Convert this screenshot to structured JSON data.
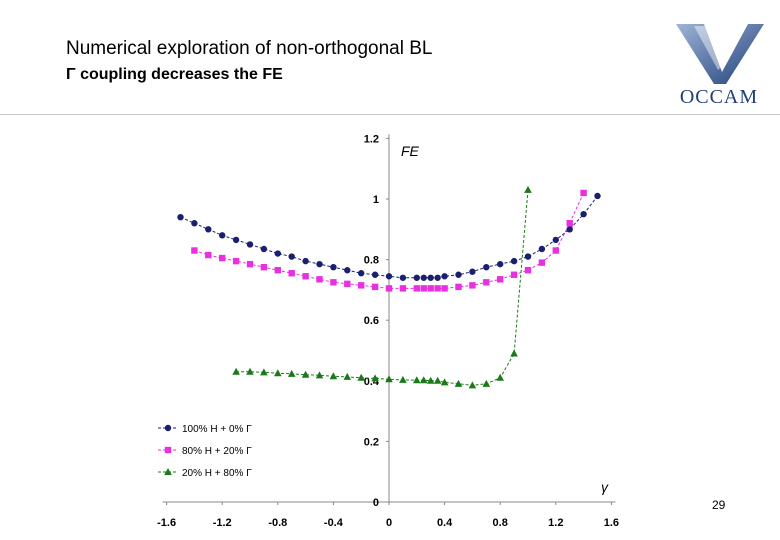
{
  "header": {
    "title": "Numerical exploration of non-orthogonal BL",
    "subtitle": "Γ coupling decreases the FE",
    "logo_text": "OCCAM",
    "page_number": "29"
  },
  "colors": {
    "series1": "#1a1f6e",
    "series2": "#e830e0",
    "series3": "#1a7a1a",
    "logo": "#1f3f7a"
  },
  "chart_data": {
    "type": "line",
    "title": "",
    "xlabel": "γ",
    "ylabel": "FE",
    "xlim": [
      -1.6,
      1.6
    ],
    "ylim": [
      0,
      1.2
    ],
    "xticks": [
      "-1.6",
      "-1.2",
      "-0.8",
      "-0.4",
      "0",
      "0.4",
      "0.8",
      "1.2",
      "1.6"
    ],
    "yticks": [
      "0",
      "0.2",
      "0.4",
      "0.6",
      "0.8",
      "1",
      "1.2"
    ],
    "grid": false,
    "legend_position": "bottom-left",
    "series": [
      {
        "name": "100% H + 0% Γ",
        "marker": "circle",
        "x": [
          -1.5,
          -1.4,
          -1.3,
          -1.2,
          -1.1,
          -1.0,
          -0.9,
          -0.8,
          -0.7,
          -0.6,
          -0.5,
          -0.4,
          -0.3,
          -0.2,
          -0.1,
          0.0,
          0.1,
          0.2,
          0.25,
          0.3,
          0.35,
          0.4,
          0.5,
          0.6,
          0.7,
          0.8,
          0.9,
          1.0,
          1.1,
          1.2,
          1.3,
          1.4,
          1.5
        ],
        "y": [
          0.94,
          0.92,
          0.9,
          0.88,
          0.865,
          0.85,
          0.835,
          0.82,
          0.81,
          0.795,
          0.785,
          0.775,
          0.765,
          0.755,
          0.75,
          0.745,
          0.74,
          0.74,
          0.74,
          0.74,
          0.74,
          0.745,
          0.75,
          0.76,
          0.775,
          0.785,
          0.795,
          0.81,
          0.835,
          0.865,
          0.9,
          0.95,
          1.01
        ]
      },
      {
        "name": "80% H + 20% Γ",
        "marker": "square",
        "x": [
          -1.4,
          -1.3,
          -1.2,
          -1.1,
          -1.0,
          -0.9,
          -0.8,
          -0.7,
          -0.6,
          -0.5,
          -0.4,
          -0.3,
          -0.2,
          -0.1,
          0.0,
          0.1,
          0.2,
          0.25,
          0.3,
          0.35,
          0.4,
          0.5,
          0.6,
          0.7,
          0.8,
          0.9,
          1.0,
          1.1,
          1.2,
          1.3,
          1.4
        ],
        "y": [
          0.83,
          0.815,
          0.805,
          0.795,
          0.785,
          0.775,
          0.765,
          0.755,
          0.745,
          0.735,
          0.725,
          0.72,
          0.715,
          0.71,
          0.705,
          0.705,
          0.705,
          0.705,
          0.705,
          0.705,
          0.705,
          0.71,
          0.715,
          0.725,
          0.735,
          0.75,
          0.765,
          0.79,
          0.83,
          0.92,
          1.02
        ]
      },
      {
        "name": "20% H + 80% Γ",
        "marker": "triangle",
        "x": [
          -1.1,
          -1.0,
          -0.9,
          -0.8,
          -0.7,
          -0.6,
          -0.5,
          -0.4,
          -0.3,
          -0.2,
          -0.1,
          0.0,
          0.1,
          0.2,
          0.25,
          0.3,
          0.35,
          0.4,
          0.5,
          0.6,
          0.7,
          0.8,
          0.9,
          1.0
        ],
        "y": [
          0.43,
          0.43,
          0.428,
          0.425,
          0.423,
          0.42,
          0.418,
          0.415,
          0.413,
          0.41,
          0.408,
          0.405,
          0.403,
          0.402,
          0.402,
          0.4,
          0.4,
          0.395,
          0.39,
          0.385,
          0.39,
          0.41,
          0.49,
          1.03
        ]
      }
    ]
  }
}
